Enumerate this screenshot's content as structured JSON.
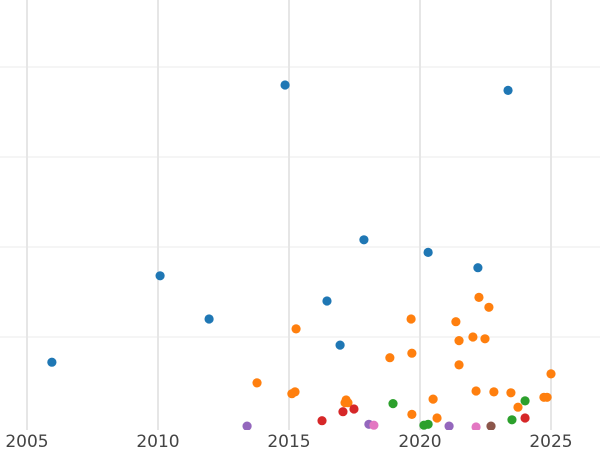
{
  "chart_data": {
    "type": "scatter",
    "title": "",
    "xlabel": "",
    "ylabel": "",
    "xlim": [
      2003.97,
      2026.87
    ],
    "ylim": [
      0,
      4.75
    ],
    "x_ticks": [
      2005,
      2010,
      2015,
      2020,
      2025
    ],
    "x_tick_labels": [
      "2005",
      "2010",
      "2015",
      "2020",
      "2025"
    ],
    "y_gridlines": [
      1,
      2,
      3,
      4
    ],
    "grid": true,
    "legend": "none",
    "series": [
      {
        "name": "series-1",
        "color": "#1f77b4",
        "points": [
          [
            2005.95,
            0.72
          ],
          [
            2010.08,
            1.68
          ],
          [
            2011.95,
            1.2
          ],
          [
            2014.85,
            3.8
          ],
          [
            2016.45,
            1.4
          ],
          [
            2016.95,
            0.91
          ],
          [
            2017.86,
            2.08
          ],
          [
            2020.31,
            1.94
          ],
          [
            2022.21,
            1.77
          ],
          [
            2023.36,
            3.74
          ]
        ]
      },
      {
        "name": "series-2",
        "color": "#ff7f0e",
        "points": [
          [
            2013.78,
            0.49
          ],
          [
            2015.11,
            0.37
          ],
          [
            2015.23,
            0.39
          ],
          [
            2015.27,
            1.09
          ],
          [
            2017.18,
            0.3
          ],
          [
            2017.25,
            0.27
          ],
          [
            2017.14,
            0.27
          ],
          [
            2018.85,
            0.77
          ],
          [
            2019.66,
            1.2
          ],
          [
            2019.69,
            0.82
          ],
          [
            2019.69,
            0.14
          ],
          [
            2020.5,
            0.31
          ],
          [
            2020.65,
            0.1
          ],
          [
            2021.37,
            1.17
          ],
          [
            2021.49,
            0.96
          ],
          [
            2021.49,
            0.69
          ],
          [
            2022.02,
            1.0
          ],
          [
            2022.14,
            0.4
          ],
          [
            2022.25,
            1.44
          ],
          [
            2022.48,
            0.98
          ],
          [
            2022.63,
            1.33
          ],
          [
            2022.82,
            0.39
          ],
          [
            2023.47,
            0.38
          ],
          [
            2023.74,
            0.22
          ],
          [
            2024.73,
            0.33
          ],
          [
            2024.85,
            0.33
          ],
          [
            2025.0,
            0.59
          ]
        ]
      },
      {
        "name": "series-3",
        "color": "#2ca02c",
        "points": [
          [
            2018.97,
            0.26
          ],
          [
            2020.15,
            0.02
          ],
          [
            2020.31,
            0.03
          ],
          [
            2023.51,
            0.08
          ],
          [
            2024.01,
            0.29
          ]
        ]
      },
      {
        "name": "series-4",
        "color": "#d62728",
        "points": [
          [
            2016.26,
            0.07
          ],
          [
            2017.06,
            0.17
          ],
          [
            2017.48,
            0.2
          ],
          [
            2024.01,
            0.1
          ]
        ]
      },
      {
        "name": "series-5",
        "color": "#9467bd",
        "points": [
          [
            2013.4,
            0.01
          ],
          [
            2018.05,
            0.03
          ],
          [
            2021.11,
            0.01
          ]
        ]
      },
      {
        "name": "series-6",
        "color": "#e377c2",
        "points": [
          [
            2018.24,
            0.02
          ],
          [
            2022.14,
            0.0
          ]
        ]
      },
      {
        "name": "series-7",
        "color": "#8c564b",
        "points": [
          [
            2022.71,
            0.01
          ]
        ]
      }
    ]
  }
}
